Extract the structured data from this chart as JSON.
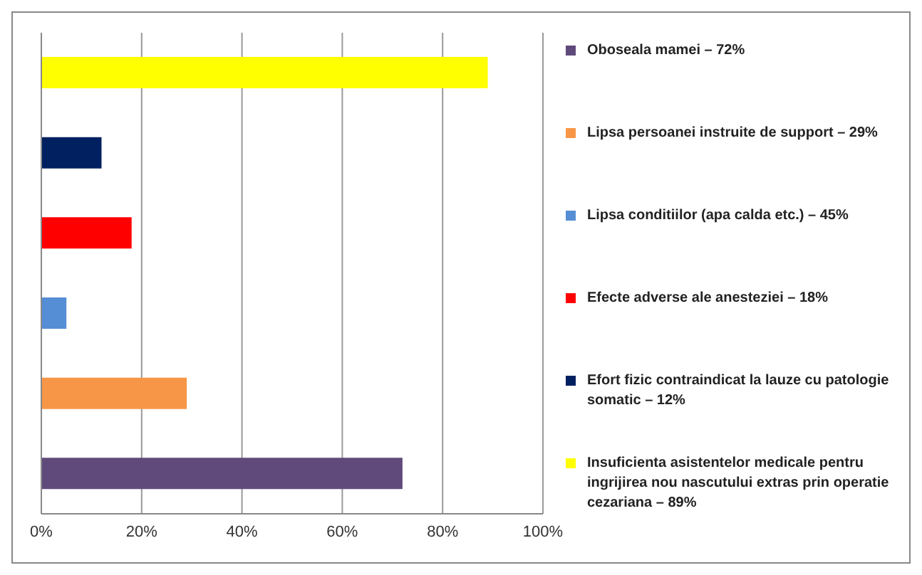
{
  "chart_data": {
    "type": "bar",
    "orientation": "horizontal",
    "stacked": true,
    "categories": [
      null,
      null,
      null,
      null,
      null,
      null
    ],
    "series": [
      {
        "name": "Oboseala mamei – 72%",
        "color": "#604a7b",
        "values": [
          null,
          null,
          null,
          null,
          null,
          72
        ]
      },
      {
        "name": "Lipsa persoanei instruite de support – 29%",
        "color": "#f79646",
        "values": [
          null,
          null,
          null,
          null,
          29,
          null
        ]
      },
      {
        "name": "Lipsa conditiilor (apa calda etc.) – 45%",
        "color": "#558ed5",
        "values": [
          null,
          null,
          null,
          5,
          null,
          null
        ]
      },
      {
        "name": "Efecte adverse ale anesteziei – 18%",
        "color": "#ff0000",
        "values": [
          null,
          null,
          18,
          null,
          null,
          null
        ]
      },
      {
        "name": "Efort  fizic contraindicat la lauze cu patologie somatic – 12%",
        "color": "#002060",
        "values": [
          null,
          12,
          null,
          null,
          null,
          null
        ]
      },
      {
        "name": "Insuficienta asistentelor  medicale pentru ingrijirea nou nascutului extras prin operatie cezariana – 89%",
        "color": "#ffff00",
        "values": [
          89,
          null,
          null,
          null,
          null,
          null
        ]
      }
    ],
    "xlim": [
      0,
      100
    ],
    "xticks": [
      {
        "value": 0,
        "label": "0%"
      },
      {
        "value": 20,
        "label": "20%"
      },
      {
        "value": 40,
        "label": "40%"
      },
      {
        "value": 60,
        "label": "60%"
      },
      {
        "value": 80,
        "label": "80%"
      },
      {
        "value": 100,
        "label": "100%"
      }
    ],
    "grid": "x",
    "legend": "right",
    "tick_labels": "x"
  }
}
